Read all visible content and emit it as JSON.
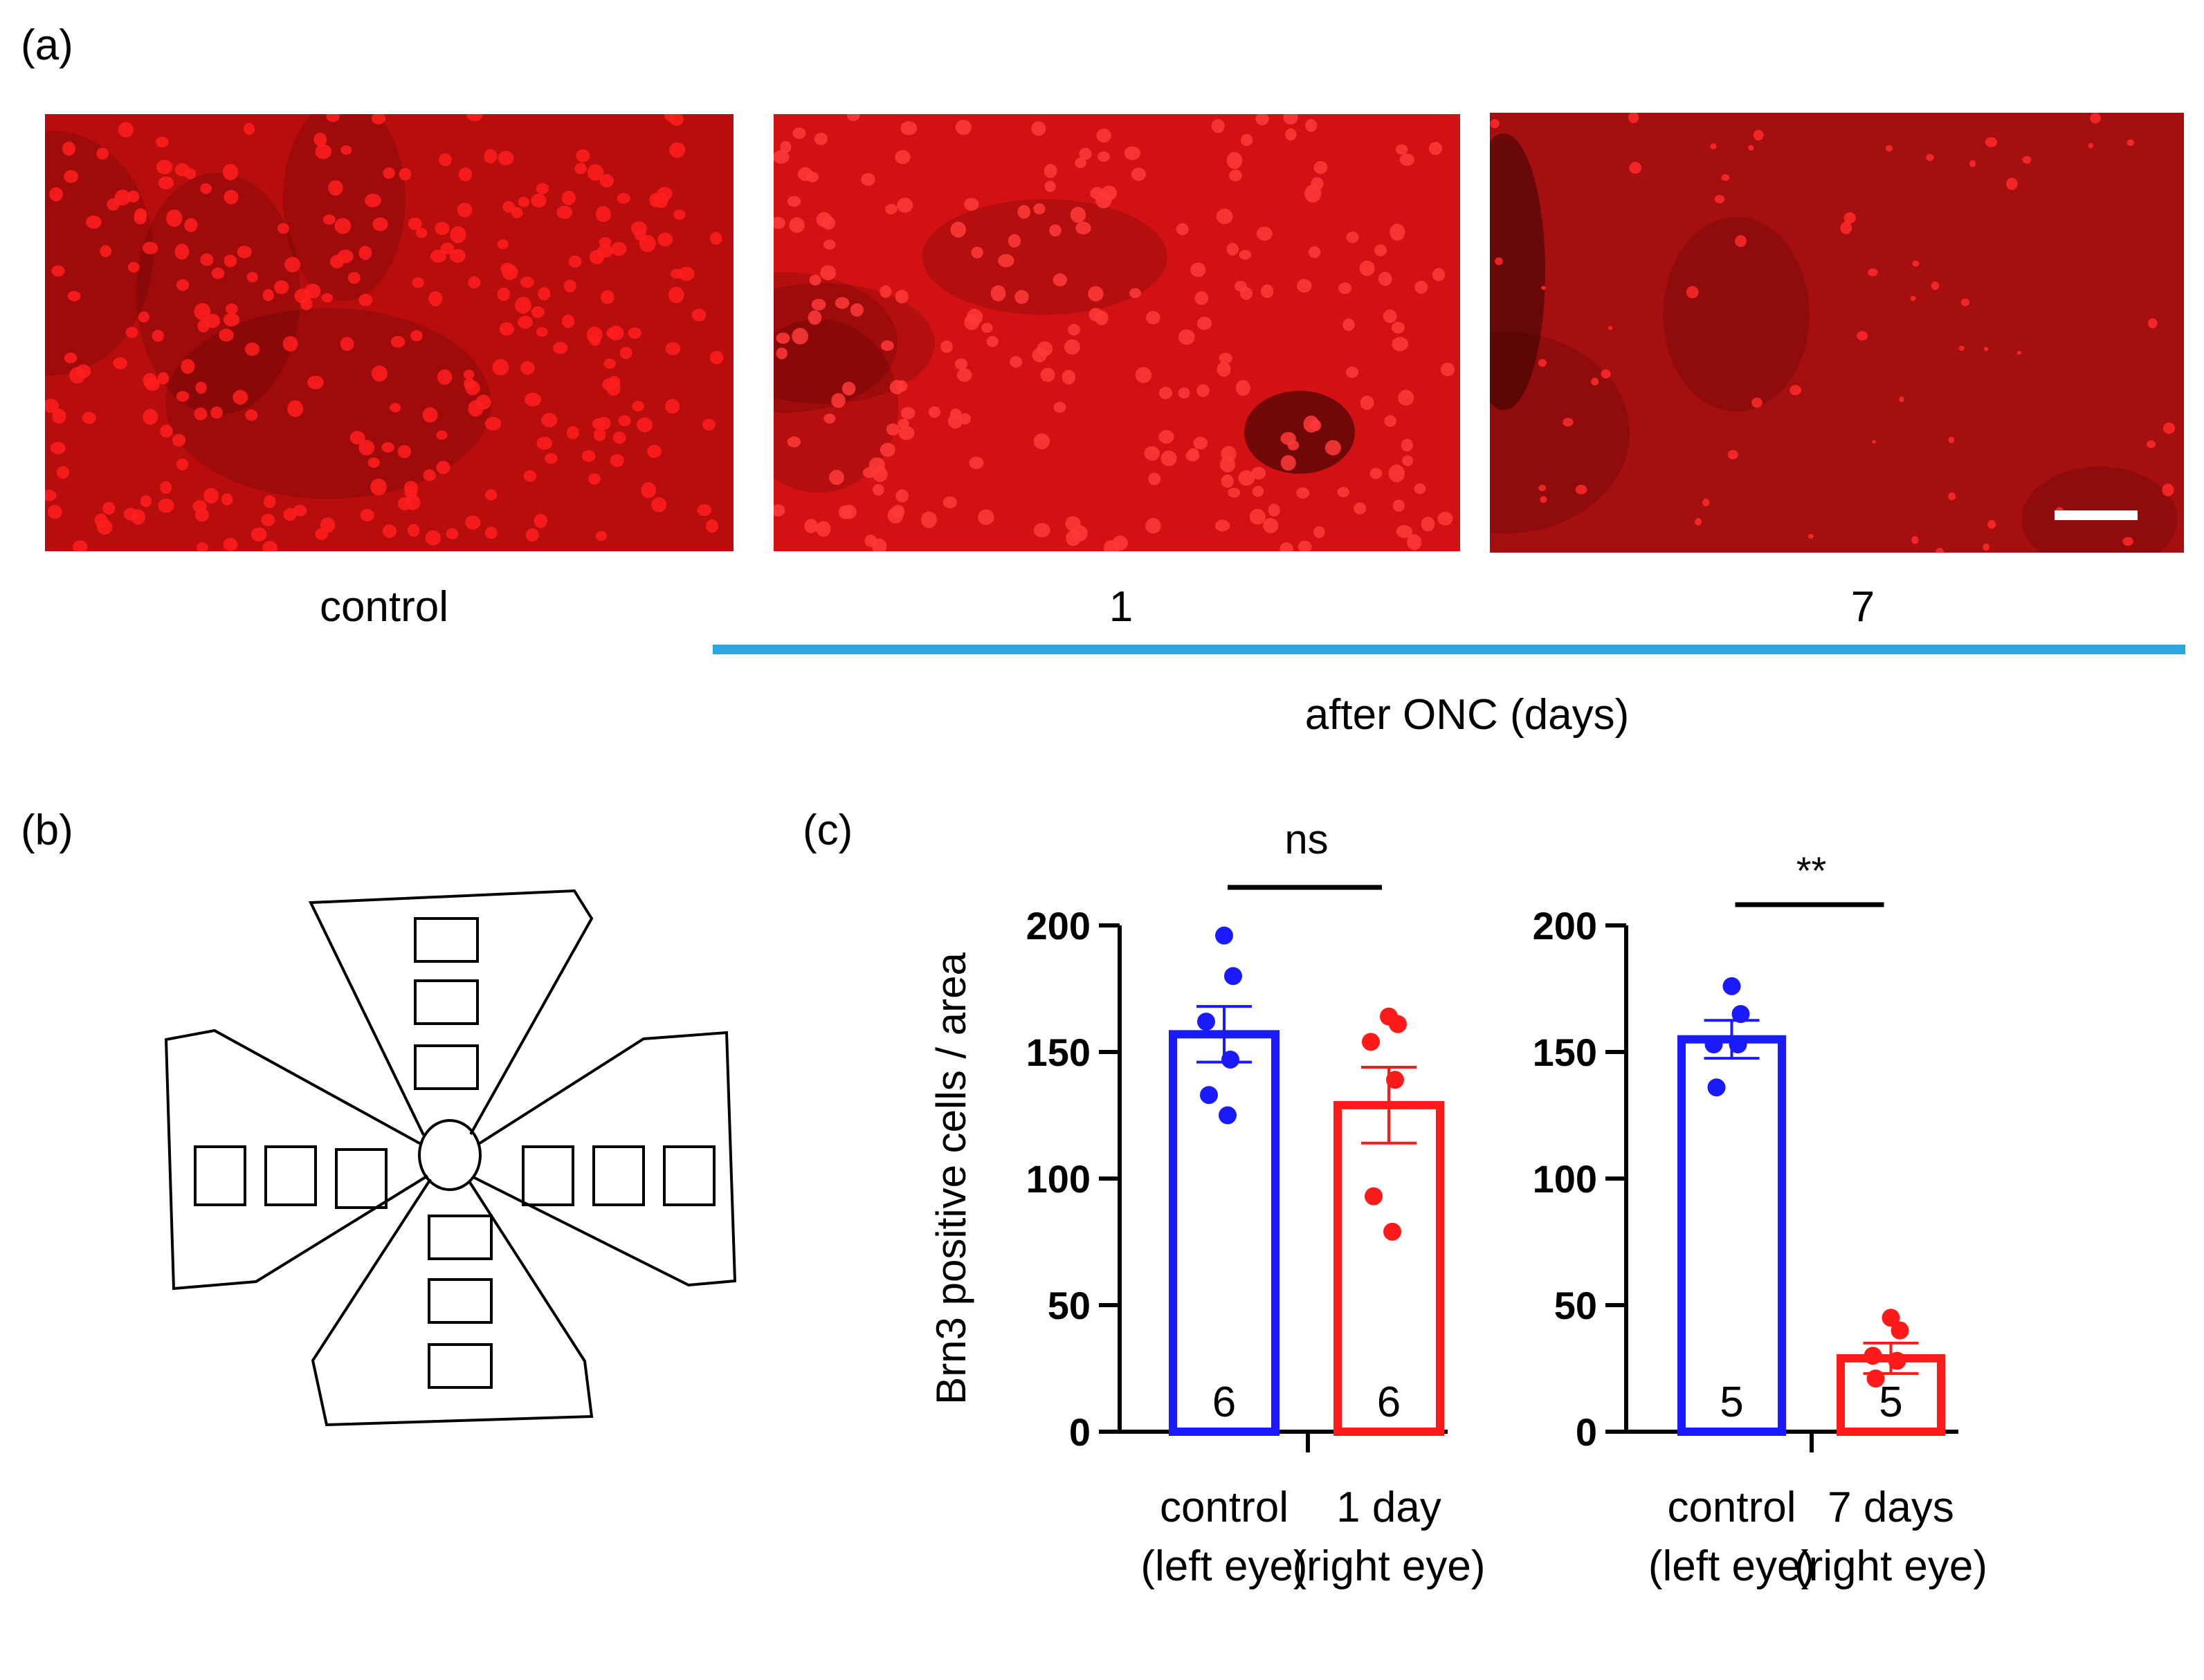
{
  "panel_a": {
    "label": "(a)",
    "images": [
      {
        "caption": "control",
        "bg": "#b80d0d",
        "dim": 0.0,
        "cells": 260,
        "bright": "#ff1e1e"
      },
      {
        "caption": "1",
        "bg": "#d21212",
        "dim": 0.0,
        "cells": 210,
        "bright": "#ff3a3a"
      },
      {
        "caption": "7",
        "bg": "#a50f0f",
        "dim": 0.0,
        "cells": 60,
        "bright": "#ff2a2a"
      }
    ],
    "timeline_label": "after ONC (days)",
    "timeline_color": "#29a8e0"
  },
  "panel_b": {
    "label": "(b)"
  },
  "panel_c": {
    "label": "(c)"
  },
  "chart_data": [
    {
      "type": "bar",
      "ylabel": "Brn3 positive cells / area",
      "ylim": [
        0,
        200
      ],
      "yticks": [
        0,
        50,
        100,
        150,
        200
      ],
      "significance": "ns",
      "categories": [
        "control\n(left eye)",
        "1 day\n(right eye)"
      ],
      "category_lines": [
        [
          "control",
          "(left eye)"
        ],
        [
          "1 day",
          "(right eye)"
        ]
      ],
      "series": [
        {
          "values": [
            157,
            129
          ]
        }
      ],
      "sem": [
        11,
        15
      ],
      "n": [
        "6",
        "6"
      ],
      "colors": [
        "#1a1aff",
        "#ff1a1a"
      ],
      "points": [
        [
          196,
          180,
          162,
          147,
          133,
          125
        ],
        [
          164,
          161,
          154,
          139,
          93,
          79
        ]
      ]
    },
    {
      "type": "bar",
      "ylim": [
        0,
        200
      ],
      "yticks": [
        0,
        50,
        100,
        150,
        200
      ],
      "significance": "**",
      "categories": [
        "control\n(left eye)",
        "7 days\n(right eye)"
      ],
      "category_lines": [
        [
          "control",
          "(left eye)"
        ],
        [
          "7 days",
          "(right eye)"
        ]
      ],
      "series": [
        {
          "values": [
            155,
            29
          ]
        }
      ],
      "sem": [
        7.5,
        6
      ],
      "n": [
        "5",
        "5"
      ],
      "colors": [
        "#1a1aff",
        "#ff1a1a"
      ],
      "points": [
        [
          176,
          165,
          153,
          153,
          136
        ],
        [
          45,
          40,
          30,
          28,
          21
        ]
      ]
    }
  ]
}
